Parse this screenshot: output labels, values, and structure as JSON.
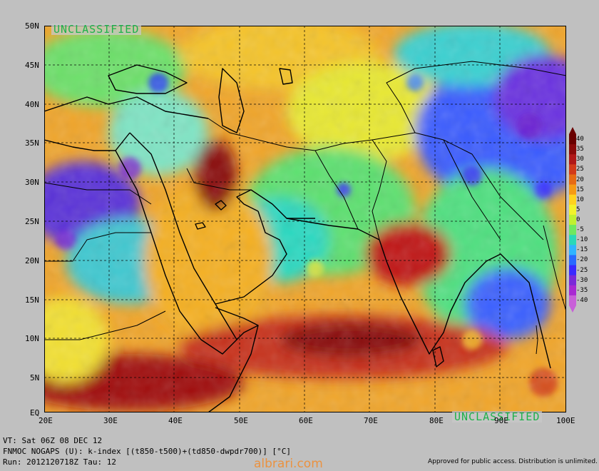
{
  "map": {
    "lat_labels": [
      "50N",
      "45N",
      "40N",
      "35N",
      "30N",
      "25N",
      "20N",
      "15N",
      "10N",
      "5N",
      "EQ"
    ],
    "lon_labels": [
      "20E",
      "30E",
      "40E",
      "50E",
      "60E",
      "70E",
      "80E",
      "90E",
      "100E"
    ],
    "classification_top": "UNCLASSIFIED",
    "classification_bottom": "UNCLASSIFIED"
  },
  "colorbar": {
    "labels": [
      "40",
      "35",
      "30",
      "25",
      "20",
      "15",
      "10",
      "5",
      "0",
      "-5",
      "-10",
      "-15",
      "-20",
      "-25",
      "-30",
      "-35",
      "-40"
    ],
    "colors": [
      "#6a0000",
      "#8a0a0a",
      "#b01818",
      "#d23a1a",
      "#e66a14",
      "#f59a14",
      "#ffd21e",
      "#f2f22a",
      "#c0f030",
      "#6ee860",
      "#2ad8b8",
      "#30b4ff",
      "#2a6aff",
      "#3a2aff",
      "#7a2ad8",
      "#a82ad2",
      "#c860d8"
    ]
  },
  "footer": {
    "line1": "VT: Sat 06Z 08 DEC 12",
    "line2": "FNMOC NOGAPS (U): k-index [(t850-t500)+(td850-dwpdr700)] [°C]",
    "line3": "Run: 2012120718Z Tau: 12",
    "approved": "Approved for public access. Distribution is unlimited.",
    "watermark": "albrari.com"
  }
}
